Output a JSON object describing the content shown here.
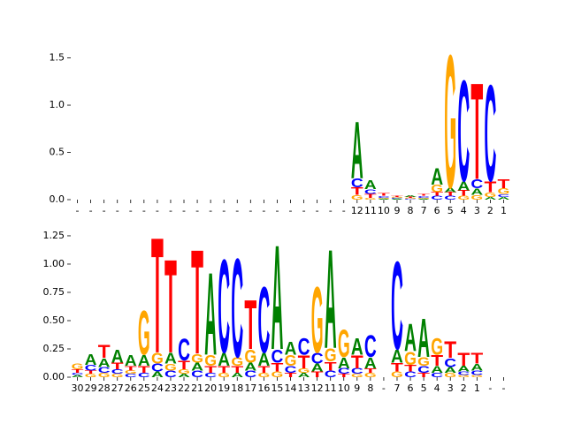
{
  "chart_data": [
    {
      "type": "sequence-logo",
      "categories": [
        "-",
        "-",
        "-",
        "-",
        "-",
        "-",
        "-",
        "-",
        "-",
        "-",
        "-",
        "-",
        "-",
        "-",
        "-",
        "-",
        "-",
        "-",
        "-",
        "-",
        "-",
        "12",
        "11",
        "10",
        "9",
        "8",
        "7",
        "6",
        "5",
        "4",
        "3",
        "2",
        "1"
      ],
      "series": [
        {
          "name": "A",
          "color": "#008000",
          "values": [
            0,
            0,
            0,
            0,
            0,
            0,
            0,
            0,
            0,
            0,
            0,
            0,
            0,
            0,
            0,
            0,
            0,
            0,
            0,
            0,
            0,
            0.62,
            0.1,
            0.01,
            0.01,
            0.02,
            0.01,
            0.18,
            0.05,
            0.1,
            0.07,
            0.03,
            0.03
          ]
        },
        {
          "name": "C",
          "color": "#0000ff",
          "values": [
            0,
            0,
            0,
            0,
            0,
            0,
            0,
            0,
            0,
            0,
            0,
            0,
            0,
            0,
            0,
            0,
            0,
            0,
            0,
            0,
            0,
            0.1,
            0.05,
            0.02,
            0.01,
            0.01,
            0.02,
            0.04,
            0.04,
            1.1,
            0.1,
            1.05,
            0.03
          ]
        },
        {
          "name": "G",
          "color": "#ffa500",
          "values": [
            0,
            0,
            0,
            0,
            0,
            0,
            0,
            0,
            0,
            0,
            0,
            0,
            0,
            0,
            0,
            0,
            0,
            0,
            0,
            0,
            0,
            0.05,
            0.02,
            0.01,
            0.01,
            0.01,
            0.01,
            0.08,
            1.45,
            0.04,
            0.05,
            0.05,
            0.06
          ]
        },
        {
          "name": "T",
          "color": "#ff0000",
          "values": [
            0,
            0,
            0,
            0,
            0,
            0,
            0,
            0,
            0,
            0,
            0,
            0,
            0,
            0,
            0,
            0,
            0,
            0,
            0,
            0,
            0,
            0.08,
            0.04,
            0.03,
            0.01,
            0.01,
            0.02,
            0.04,
            0.04,
            0.06,
            1.05,
            0.12,
            0.1
          ]
        }
      ],
      "ylim": [
        0,
        1.58
      ],
      "yticks": [
        {
          "value": 0,
          "label": "0.0"
        },
        {
          "value": 0.5,
          "label": "0.5"
        },
        {
          "value": 1,
          "label": "1.0"
        },
        {
          "value": 1.5,
          "label": "1.5"
        }
      ]
    },
    {
      "type": "sequence-logo",
      "categories": [
        "30",
        "29",
        "28",
        "27",
        "26",
        "25",
        "24",
        "23",
        "22",
        "21",
        "20",
        "19",
        "18",
        "17",
        "16",
        "15",
        "14",
        "13",
        "12",
        "11",
        "10",
        "9",
        "8",
        "-",
        "7",
        "6",
        "5",
        "4",
        "3",
        "2",
        "1",
        "-",
        "-"
      ],
      "series": [
        {
          "name": "A",
          "color": "#008000",
          "values": [
            0.02,
            0.1,
            0.08,
            0.12,
            0.1,
            0.1,
            0.05,
            0.1,
            0.03,
            0.07,
            0.75,
            0.12,
            0.04,
            0.07,
            0.12,
            0.95,
            0.12,
            0.04,
            0.07,
            0.9,
            0.1,
            0.15,
            0.1,
            0,
            0.12,
            0.25,
            0.35,
            0.06,
            0.05,
            0.05,
            0.06,
            0,
            0
          ]
        },
        {
          "name": "C",
          "color": "#0000ff",
          "values": [
            0.02,
            0.05,
            0.05,
            0.04,
            0.03,
            0.04,
            0.07,
            0.06,
            0.2,
            0.06,
            0.04,
            0.85,
            0.9,
            0.06,
            0.6,
            0.12,
            0.06,
            0.15,
            0.1,
            0.06,
            0.05,
            0.05,
            0.2,
            0,
            0.8,
            0.05,
            0.06,
            0.04,
            0.08,
            0.03,
            0.04,
            0,
            0
          ]
        },
        {
          "name": "G",
          "color": "#ffa500",
          "values": [
            0.05,
            0.03,
            0.04,
            0.03,
            0.03,
            0.4,
            0.1,
            0.06,
            0.04,
            0.08,
            0.1,
            0.04,
            0.08,
            0.12,
            0.04,
            0.05,
            0.1,
            0.04,
            0.6,
            0.12,
            0.25,
            0.03,
            0.04,
            0,
            0.05,
            0.12,
            0.08,
            0.15,
            0.04,
            0.02,
            0.02,
            0,
            0
          ]
        },
        {
          "name": "T",
          "color": "#ff0000",
          "values": [
            0.03,
            0.03,
            0.12,
            0.06,
            0.04,
            0.06,
            1.05,
            0.85,
            0.08,
            0.95,
            0.06,
            0.06,
            0.06,
            0.45,
            0.06,
            0.08,
            0.04,
            0.12,
            0.05,
            0.08,
            0.03,
            0.12,
            0.04,
            0,
            0.08,
            0.06,
            0.04,
            0.1,
            0.15,
            0.12,
            0.1,
            0,
            0
          ]
        }
      ],
      "ylim": [
        0,
        1.32
      ],
      "yticks": [
        {
          "value": 0,
          "label": "0.00"
        },
        {
          "value": 0.25,
          "label": "0.25"
        },
        {
          "value": 0.5,
          "label": "0.50"
        },
        {
          "value": 0.75,
          "label": "0.75"
        },
        {
          "value": 1,
          "label": "1.00"
        },
        {
          "value": 1.25,
          "label": "1.25"
        }
      ]
    }
  ]
}
